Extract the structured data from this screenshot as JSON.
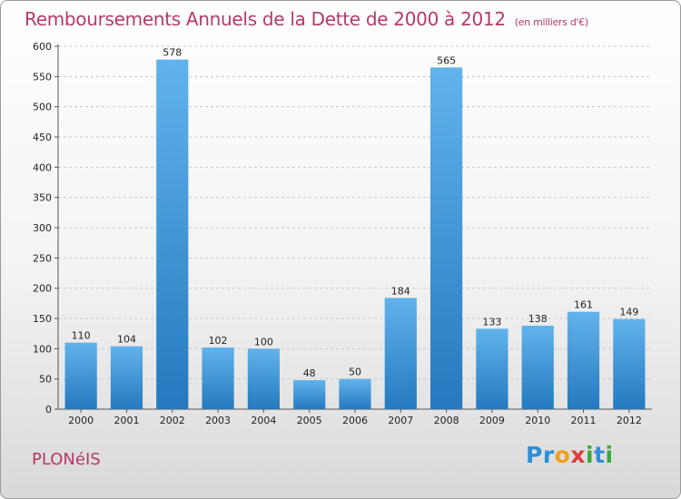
{
  "header": {
    "title": "Remboursements Annuels de la Dette de 2000 à 2012",
    "unit": "(en milliers d'€)"
  },
  "footer": {
    "commune": "PLONéIS",
    "logo_letters": [
      {
        "ch": "P",
        "color": "#2e8fd6"
      },
      {
        "ch": "r",
        "color": "#2e8fd6"
      },
      {
        "ch": "o",
        "color": "#f0a020"
      },
      {
        "ch": "x",
        "color": "#e03a3a"
      },
      {
        "ch": "i",
        "color": "#3aaa3a"
      },
      {
        "ch": "t",
        "color": "#2e8fd6"
      },
      {
        "ch": "i",
        "color": "#3aaa3a"
      }
    ]
  },
  "colors": {
    "bar_top": "#62b3ec",
    "bar_bottom": "#2479bf",
    "title": "#b5396b",
    "grid": "#c8c8c8"
  },
  "chart_data": {
    "type": "bar",
    "categories": [
      "2000",
      "2001",
      "2002",
      "2003",
      "2004",
      "2005",
      "2006",
      "2007",
      "2008",
      "2009",
      "2010",
      "2011",
      "2012"
    ],
    "values": [
      110,
      104,
      578,
      102,
      100,
      48,
      50,
      184,
      565,
      133,
      138,
      161,
      149
    ],
    "data_labels": [
      "110",
      "104",
      "578",
      "102",
      "100",
      "48",
      "50",
      "184",
      "565",
      "133",
      "138",
      "161",
      "149"
    ],
    "yticks": [
      "0",
      "50",
      "100",
      "150",
      "200",
      "250",
      "300",
      "350",
      "400",
      "450",
      "500",
      "550",
      "600"
    ],
    "ylim": [
      0,
      600
    ],
    "grid": "horizontal dashed",
    "legend": "none"
  }
}
